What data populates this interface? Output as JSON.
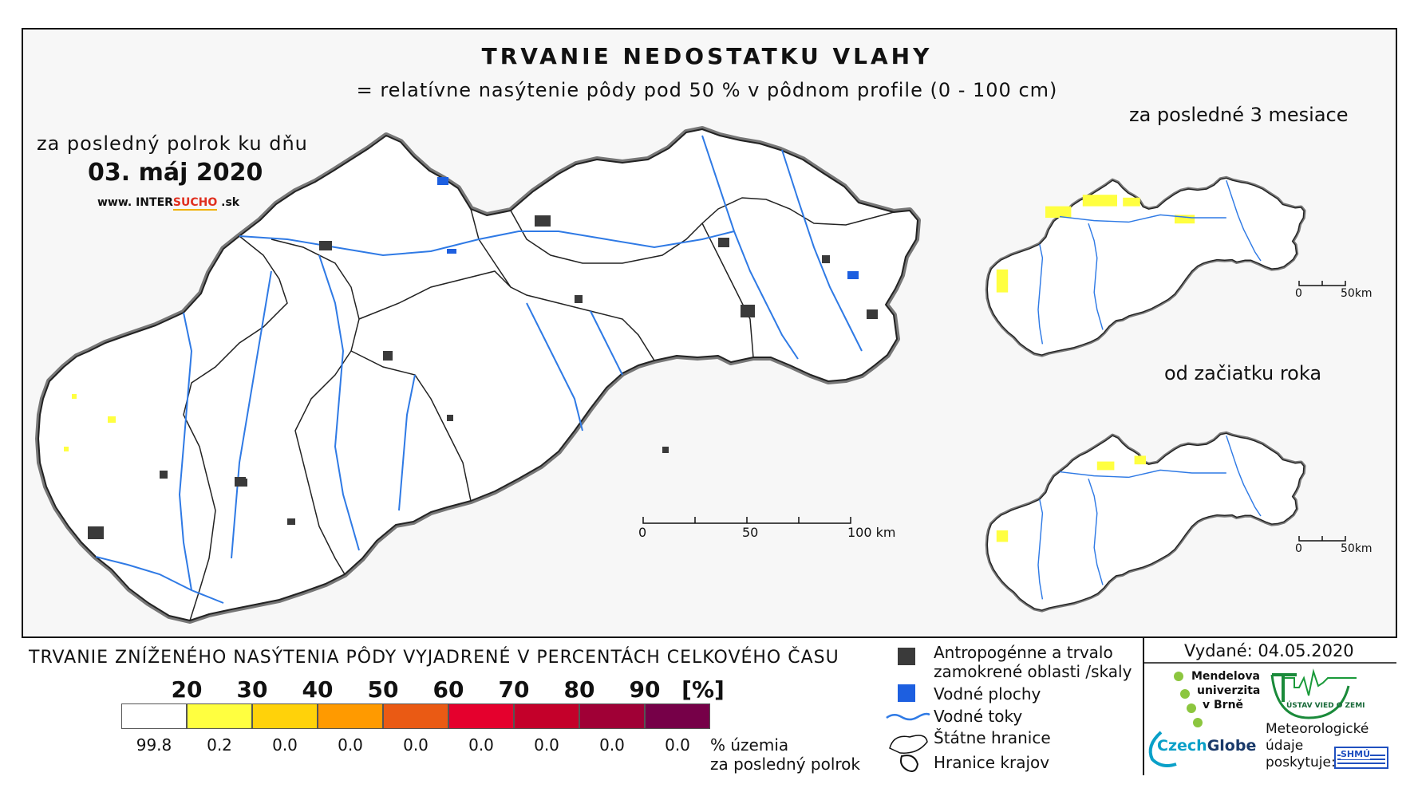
{
  "title": "TRVANIE NEDOSTATKU VLAHY",
  "subtitle": "= relatívne nasýtenie pôdy pod 50 % v pôdnom profile (0 - 100 cm)",
  "main_map": {
    "period_label": "za posledný polrok ku dňu",
    "date": "03. máj 2020",
    "website_prefix": "www. INTER",
    "website_highlight": "SUCHO",
    "website_suffix": " .sk",
    "scale_labels": [
      "0",
      "50",
      "100 km"
    ]
  },
  "inset_top": {
    "label": "za posledné 3 mesiace",
    "scale_labels": [
      "0",
      "50km"
    ]
  },
  "inset_bottom": {
    "label": "od začiatku roka",
    "scale_labels": [
      "0",
      "50km"
    ]
  },
  "legend": {
    "title": "TRVANIE ZNÍŽENÉHO NASÝTENIA PÔDY VYJADRENÉ V PERCENTÁCH CELKOVÉHO ČASU",
    "class_labels": [
      "20",
      "30",
      "40",
      "50",
      "60",
      "70",
      "80",
      "90",
      "[%]"
    ],
    "colors": [
      "#ffffff",
      "#ffff40",
      "#ffd20a",
      "#ff9a00",
      "#ea5a14",
      "#e5002d",
      "#c4002a",
      "#a00036",
      "#760048"
    ],
    "percentages": [
      "99.8",
      "0.2",
      "0.0",
      "0.0",
      "0.0",
      "0.0",
      "0.0",
      "0.0",
      "0.0"
    ],
    "pct_caption_line1": "% územia",
    "pct_caption_line2": "za posledný polrok"
  },
  "key": {
    "anthropogenic_line1": "Antropogénne a trvalo",
    "anthropogenic_line2": "zamokrené oblasti /skaly",
    "water_bodies": "Vodné plochy",
    "rivers": "Vodné toky",
    "state_border": "Štátne hranice",
    "region_border": "Hranice krajov",
    "anthropogenic_color": "#3a3a3a",
    "water_color": "#1d5fe0",
    "river_color": "#2f7ae5"
  },
  "issued": {
    "label": "Vydané:",
    "date": "04.05.2020"
  },
  "logos": {
    "mendel_line1": "Mendelova",
    "mendel_line2": "univerzita",
    "mendel_line3": "v Brně",
    "ustav": "ÚSTAV VIED O ZEMI",
    "czechglobe_a": "Czech",
    "czechglobe_b": "Globe",
    "meteo_line1": "Meteorologické",
    "meteo_line2": "údaje",
    "meteo_line3": "poskytuje:",
    "shmu": "SHMÚ"
  }
}
